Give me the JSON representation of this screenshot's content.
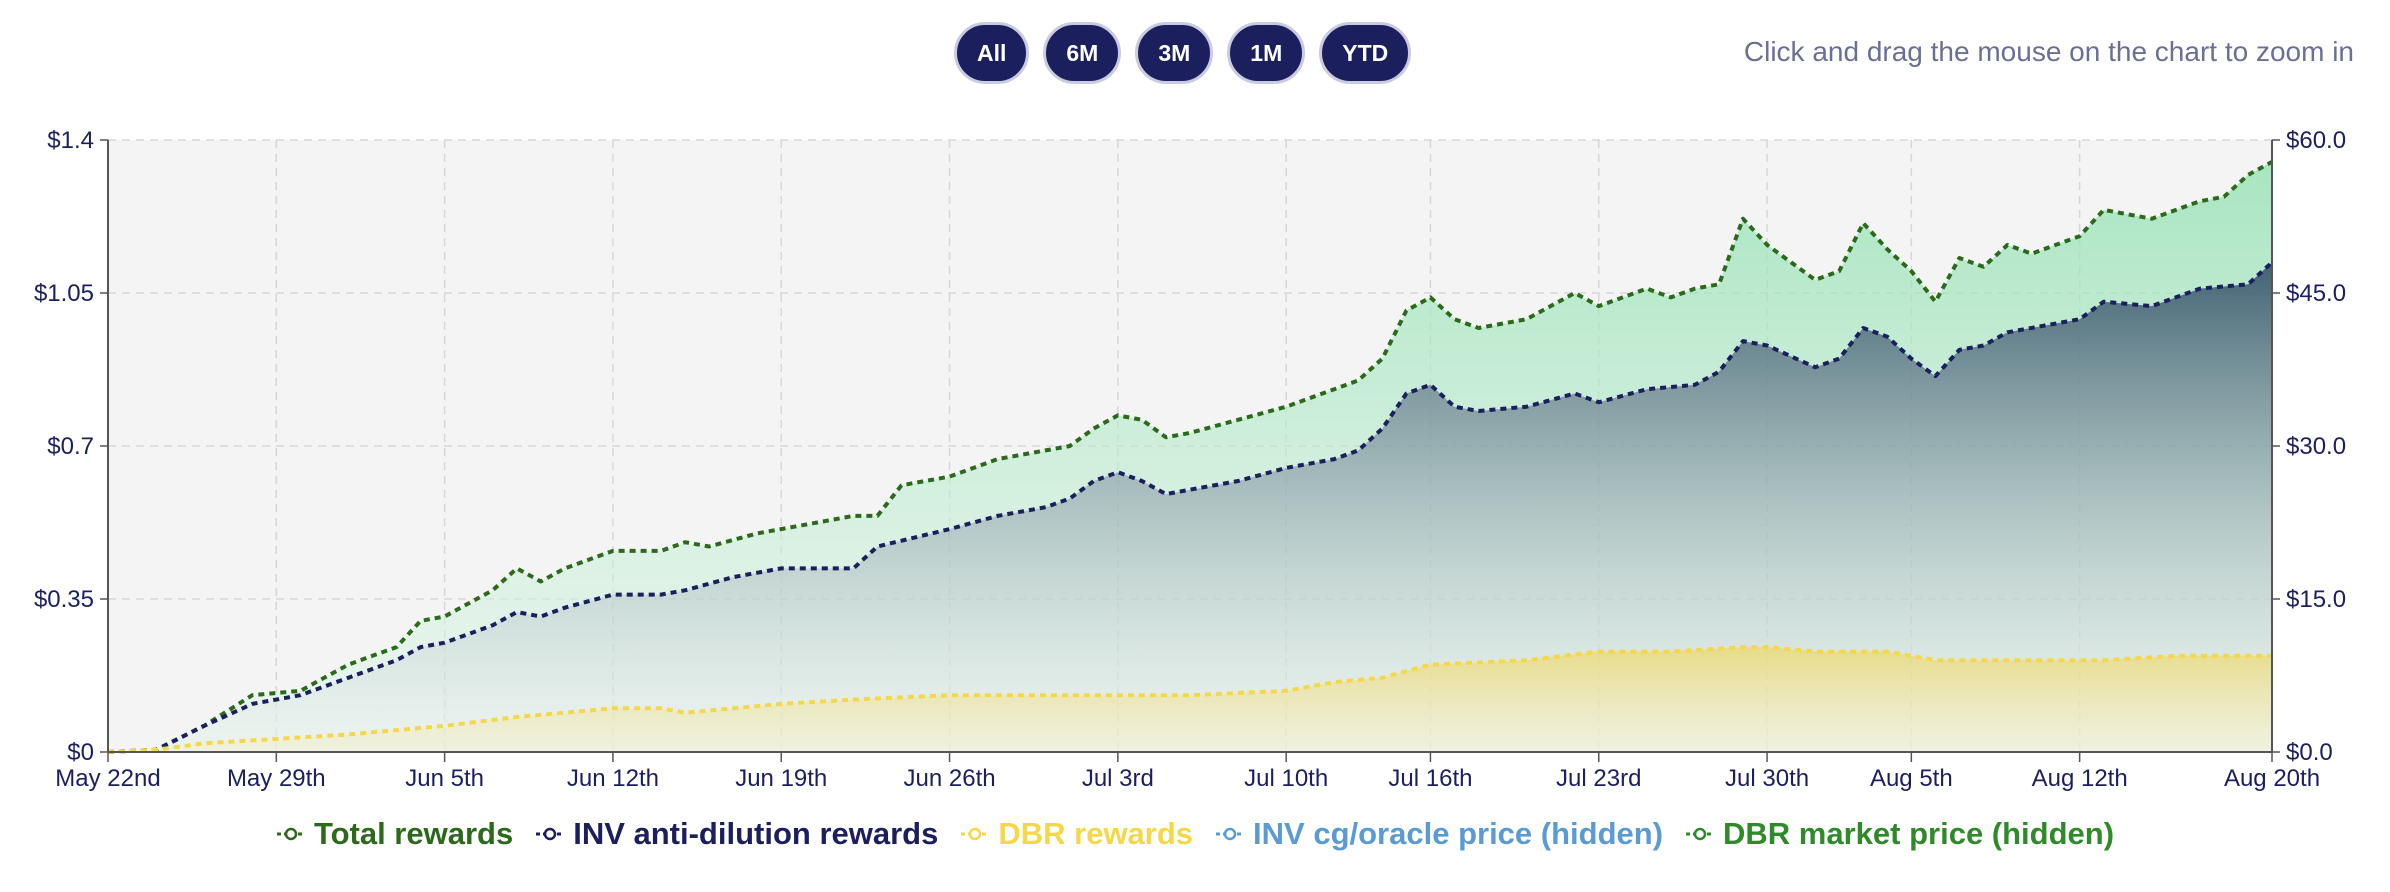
{
  "controls": {
    "range_buttons": [
      "All",
      "6M",
      "3M",
      "1M",
      "YTD"
    ],
    "zoom_hint": "Click and drag the mouse on the chart to zoom in"
  },
  "chart_data": {
    "type": "area",
    "x_start": "2023-05-22",
    "x_end": "2023-08-20",
    "x_tick_labels": [
      "May 22nd",
      "May 29th",
      "Jun 5th",
      "Jun 12th",
      "Jun 19th",
      "Jun 26th",
      "Jul 3rd",
      "Jul 10th",
      "Jul 16th",
      "Jul 23rd",
      "Jul 30th",
      "Aug 5th",
      "Aug 12th",
      "Aug 20th"
    ],
    "x_tick_dates": [
      "2023-05-22",
      "2023-05-29",
      "2023-06-05",
      "2023-06-12",
      "2023-06-19",
      "2023-06-26",
      "2023-07-03",
      "2023-07-10",
      "2023-07-16",
      "2023-07-23",
      "2023-07-30",
      "2023-08-05",
      "2023-08-12",
      "2023-08-20"
    ],
    "y_left": {
      "min": 0,
      "max": 1.4,
      "ticks": [
        0,
        0.35,
        0.7,
        1.05,
        1.4
      ],
      "tick_labels": [
        "$0",
        "$0.35",
        "$0.7",
        "$1.05",
        "$1.4"
      ]
    },
    "y_right": {
      "min": 0,
      "max": 60,
      "ticks": [
        0,
        15,
        30,
        45,
        60
      ],
      "tick_labels": [
        "$0.0",
        "$15.0",
        "$30.0",
        "$45.0",
        "$60.0"
      ]
    },
    "grid": true,
    "legend_position": "bottom",
    "series": [
      {
        "name": "Total rewards",
        "color": "#2b6a1a",
        "fill": "#8fe0b0",
        "axis": "left",
        "points": [
          [
            "2023-05-22",
            0
          ],
          [
            "2023-05-24",
            0.005
          ],
          [
            "2023-05-26",
            0.06
          ],
          [
            "2023-05-28",
            0.13
          ],
          [
            "2023-05-30",
            0.14
          ],
          [
            "2023-06-01",
            0.2
          ],
          [
            "2023-06-02",
            0.22
          ],
          [
            "2023-06-03",
            0.24
          ],
          [
            "2023-06-04",
            0.3
          ],
          [
            "2023-06-05",
            0.31
          ],
          [
            "2023-06-07",
            0.37
          ],
          [
            "2023-06-08",
            0.42
          ],
          [
            "2023-06-09",
            0.39
          ],
          [
            "2023-06-10",
            0.42
          ],
          [
            "2023-06-12",
            0.46
          ],
          [
            "2023-06-14",
            0.46
          ],
          [
            "2023-06-15",
            0.48
          ],
          [
            "2023-06-16",
            0.47
          ],
          [
            "2023-06-18",
            0.5
          ],
          [
            "2023-06-20",
            0.52
          ],
          [
            "2023-06-22",
            0.54
          ],
          [
            "2023-06-23",
            0.54
          ],
          [
            "2023-06-24",
            0.61
          ],
          [
            "2023-06-26",
            0.63
          ],
          [
            "2023-06-28",
            0.67
          ],
          [
            "2023-06-30",
            0.69
          ],
          [
            "2023-07-01",
            0.7
          ],
          [
            "2023-07-02",
            0.74
          ],
          [
            "2023-07-03",
            0.77
          ],
          [
            "2023-07-04",
            0.76
          ],
          [
            "2023-07-05",
            0.72
          ],
          [
            "2023-07-06",
            0.73
          ],
          [
            "2023-07-08",
            0.76
          ],
          [
            "2023-07-10",
            0.79
          ],
          [
            "2023-07-12",
            0.83
          ],
          [
            "2023-07-13",
            0.85
          ],
          [
            "2023-07-14",
            0.9
          ],
          [
            "2023-07-15",
            1.01
          ],
          [
            "2023-07-16",
            1.04
          ],
          [
            "2023-07-17",
            0.99
          ],
          [
            "2023-07-18",
            0.97
          ],
          [
            "2023-07-20",
            0.99
          ],
          [
            "2023-07-22",
            1.05
          ],
          [
            "2023-07-23",
            1.02
          ],
          [
            "2023-07-25",
            1.06
          ],
          [
            "2023-07-26",
            1.04
          ],
          [
            "2023-07-27",
            1.06
          ],
          [
            "2023-07-28",
            1.07
          ],
          [
            "2023-07-29",
            1.22
          ],
          [
            "2023-07-30",
            1.16
          ],
          [
            "2023-08-01",
            1.08
          ],
          [
            "2023-08-02",
            1.1
          ],
          [
            "2023-08-03",
            1.21
          ],
          [
            "2023-08-04",
            1.15
          ],
          [
            "2023-08-05",
            1.1
          ],
          [
            "2023-08-06",
            1.03
          ],
          [
            "2023-08-07",
            1.13
          ],
          [
            "2023-08-08",
            1.11
          ],
          [
            "2023-08-09",
            1.16
          ],
          [
            "2023-08-10",
            1.14
          ],
          [
            "2023-08-12",
            1.18
          ],
          [
            "2023-08-13",
            1.24
          ],
          [
            "2023-08-15",
            1.22
          ],
          [
            "2023-08-17",
            1.26
          ],
          [
            "2023-08-18",
            1.27
          ],
          [
            "2023-08-19",
            1.32
          ],
          [
            "2023-08-20",
            1.35
          ]
        ]
      },
      {
        "name": "INV anti-dilution rewards",
        "color": "#1b1f5e",
        "fill": "#2e4a63",
        "axis": "left",
        "points": [
          [
            "2023-05-22",
            0
          ],
          [
            "2023-05-24",
            0.005
          ],
          [
            "2023-05-26",
            0.06
          ],
          [
            "2023-05-28",
            0.11
          ],
          [
            "2023-05-30",
            0.13
          ],
          [
            "2023-06-01",
            0.17
          ],
          [
            "2023-06-03",
            0.21
          ],
          [
            "2023-06-04",
            0.24
          ],
          [
            "2023-06-05",
            0.25
          ],
          [
            "2023-06-07",
            0.29
          ],
          [
            "2023-06-08",
            0.32
          ],
          [
            "2023-06-09",
            0.31
          ],
          [
            "2023-06-10",
            0.33
          ],
          [
            "2023-06-12",
            0.36
          ],
          [
            "2023-06-14",
            0.36
          ],
          [
            "2023-06-15",
            0.37
          ],
          [
            "2023-06-17",
            0.4
          ],
          [
            "2023-06-19",
            0.42
          ],
          [
            "2023-06-22",
            0.42
          ],
          [
            "2023-06-23",
            0.47
          ],
          [
            "2023-06-26",
            0.51
          ],
          [
            "2023-06-28",
            0.54
          ],
          [
            "2023-06-30",
            0.56
          ],
          [
            "2023-07-01",
            0.58
          ],
          [
            "2023-07-02",
            0.62
          ],
          [
            "2023-07-03",
            0.64
          ],
          [
            "2023-07-04",
            0.62
          ],
          [
            "2023-07-05",
            0.59
          ],
          [
            "2023-07-06",
            0.6
          ],
          [
            "2023-07-08",
            0.62
          ],
          [
            "2023-07-10",
            0.65
          ],
          [
            "2023-07-12",
            0.67
          ],
          [
            "2023-07-13",
            0.69
          ],
          [
            "2023-07-14",
            0.74
          ],
          [
            "2023-07-15",
            0.82
          ],
          [
            "2023-07-16",
            0.84
          ],
          [
            "2023-07-17",
            0.79
          ],
          [
            "2023-07-18",
            0.78
          ],
          [
            "2023-07-20",
            0.79
          ],
          [
            "2023-07-22",
            0.82
          ],
          [
            "2023-07-23",
            0.8
          ],
          [
            "2023-07-25",
            0.83
          ],
          [
            "2023-07-27",
            0.84
          ],
          [
            "2023-07-28",
            0.87
          ],
          [
            "2023-07-29",
            0.94
          ],
          [
            "2023-07-30",
            0.93
          ],
          [
            "2023-08-01",
            0.88
          ],
          [
            "2023-08-02",
            0.9
          ],
          [
            "2023-08-03",
            0.97
          ],
          [
            "2023-08-04",
            0.95
          ],
          [
            "2023-08-05",
            0.9
          ],
          [
            "2023-08-06",
            0.86
          ],
          [
            "2023-08-07",
            0.92
          ],
          [
            "2023-08-08",
            0.93
          ],
          [
            "2023-08-09",
            0.96
          ],
          [
            "2023-08-12",
            0.99
          ],
          [
            "2023-08-13",
            1.03
          ],
          [
            "2023-08-15",
            1.02
          ],
          [
            "2023-08-17",
            1.06
          ],
          [
            "2023-08-19",
            1.07
          ],
          [
            "2023-08-20",
            1.12
          ]
        ]
      },
      {
        "name": "DBR rewards",
        "color": "#f5d84a",
        "fill": "#f3d54d",
        "axis": "left",
        "points": [
          [
            "2023-05-22",
            0
          ],
          [
            "2023-05-24",
            0.005
          ],
          [
            "2023-05-26",
            0.02
          ],
          [
            "2023-05-29",
            0.03
          ],
          [
            "2023-06-01",
            0.04
          ],
          [
            "2023-06-03",
            0.05
          ],
          [
            "2023-06-05",
            0.06
          ],
          [
            "2023-06-08",
            0.08
          ],
          [
            "2023-06-12",
            0.1
          ],
          [
            "2023-06-14",
            0.1
          ],
          [
            "2023-06-15",
            0.09
          ],
          [
            "2023-06-19",
            0.11
          ],
          [
            "2023-06-22",
            0.12
          ],
          [
            "2023-06-26",
            0.13
          ],
          [
            "2023-07-01",
            0.13
          ],
          [
            "2023-07-03",
            0.13
          ],
          [
            "2023-07-06",
            0.13
          ],
          [
            "2023-07-10",
            0.14
          ],
          [
            "2023-07-12",
            0.16
          ],
          [
            "2023-07-14",
            0.17
          ],
          [
            "2023-07-16",
            0.2
          ],
          [
            "2023-07-20",
            0.21
          ],
          [
            "2023-07-23",
            0.23
          ],
          [
            "2023-07-26",
            0.23
          ],
          [
            "2023-07-29",
            0.24
          ],
          [
            "2023-07-30",
            0.24
          ],
          [
            "2023-08-01",
            0.23
          ],
          [
            "2023-08-04",
            0.23
          ],
          [
            "2023-08-06",
            0.21
          ],
          [
            "2023-08-10",
            0.21
          ],
          [
            "2023-08-13",
            0.21
          ],
          [
            "2023-08-16",
            0.22
          ],
          [
            "2023-08-20",
            0.22
          ]
        ]
      },
      {
        "name": "INV cg/oracle price (hidden)",
        "color": "#5b9bd5",
        "hidden": true
      },
      {
        "name": "DBR market price (hidden)",
        "color": "#2f8a2a",
        "hidden": true
      }
    ]
  }
}
